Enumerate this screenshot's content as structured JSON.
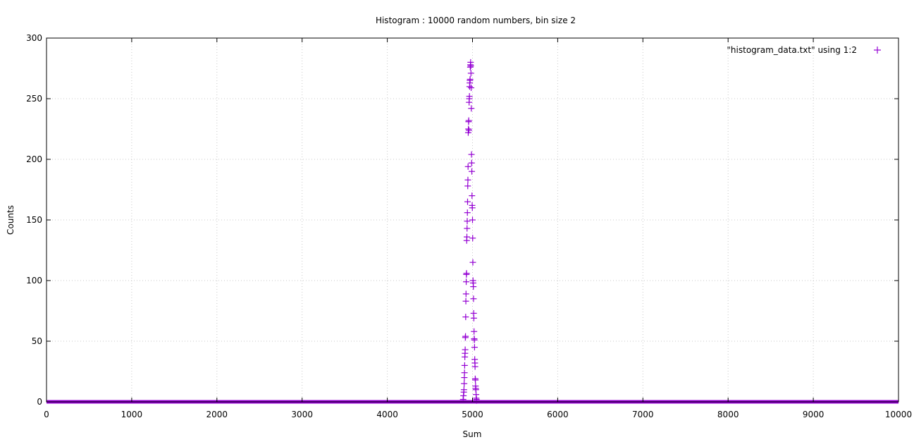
{
  "chart_data": {
    "type": "scatter",
    "title": "Histogram : 10000 random numbers, bin size 2",
    "xlabel": "Sum",
    "ylabel": "Counts",
    "xlim": [
      0,
      10000
    ],
    "ylim": [
      0,
      300
    ],
    "xticks": [
      0,
      1000,
      2000,
      3000,
      4000,
      5000,
      6000,
      7000,
      8000,
      9000,
      10000
    ],
    "yticks": [
      0,
      50,
      100,
      150,
      200,
      250,
      300
    ],
    "grid": true,
    "legend_position": "top-right",
    "point_style": "plus",
    "color": "#9400d3",
    "series": [
      {
        "name": "\"histogram_data.txt\" using 1:2",
        "baseline": {
          "from": 0,
          "to": 10000,
          "value": 0
        },
        "points": [
          [
            4890,
            2
          ],
          [
            4894,
            5
          ],
          [
            4898,
            8
          ],
          [
            4900,
            10
          ],
          [
            4902,
            15
          ],
          [
            4904,
            20
          ],
          [
            4906,
            24
          ],
          [
            4908,
            30
          ],
          [
            4910,
            37
          ],
          [
            4912,
            40
          ],
          [
            4914,
            43
          ],
          [
            4916,
            53
          ],
          [
            4918,
            54
          ],
          [
            4920,
            70
          ],
          [
            4922,
            83
          ],
          [
            4924,
            89
          ],
          [
            4926,
            99
          ],
          [
            4928,
            105
          ],
          [
            4930,
            106
          ],
          [
            4932,
            133
          ],
          [
            4934,
            136
          ],
          [
            4936,
            143
          ],
          [
            4938,
            149
          ],
          [
            4940,
            156
          ],
          [
            4942,
            165
          ],
          [
            4944,
            178
          ],
          [
            4946,
            183
          ],
          [
            4948,
            194
          ],
          [
            4950,
            222
          ],
          [
            4952,
            225
          ],
          [
            4954,
            231
          ],
          [
            4956,
            232
          ],
          [
            4958,
            224
          ],
          [
            4960,
            247
          ],
          [
            4962,
            250
          ],
          [
            4964,
            252
          ],
          [
            4966,
            260
          ],
          [
            4968,
            263
          ],
          [
            4970,
            265
          ],
          [
            4972,
            266
          ],
          [
            4974,
            276
          ],
          [
            4976,
            278
          ],
          [
            4978,
            280
          ],
          [
            4980,
            277
          ],
          [
            4982,
            271
          ],
          [
            4984,
            259
          ],
          [
            4986,
            242
          ],
          [
            4988,
            204
          ],
          [
            4990,
            197
          ],
          [
            4992,
            190
          ],
          [
            4994,
            170
          ],
          [
            4996,
            162
          ],
          [
            4998,
            160
          ],
          [
            5000,
            150
          ],
          [
            5002,
            135
          ],
          [
            5004,
            115
          ],
          [
            5006,
            100
          ],
          [
            5008,
            98
          ],
          [
            5010,
            95
          ],
          [
            5012,
            85
          ],
          [
            5014,
            73
          ],
          [
            5016,
            69
          ],
          [
            5018,
            58
          ],
          [
            5020,
            52
          ],
          [
            5022,
            51
          ],
          [
            5024,
            45
          ],
          [
            5026,
            35
          ],
          [
            5028,
            32
          ],
          [
            5030,
            29
          ],
          [
            5032,
            19
          ],
          [
            5034,
            18
          ],
          [
            5036,
            13
          ],
          [
            5038,
            11
          ],
          [
            5040,
            10
          ],
          [
            5042,
            6
          ],
          [
            5044,
            3
          ],
          [
            5046,
            2
          ],
          [
            5048,
            1
          ]
        ]
      }
    ]
  }
}
